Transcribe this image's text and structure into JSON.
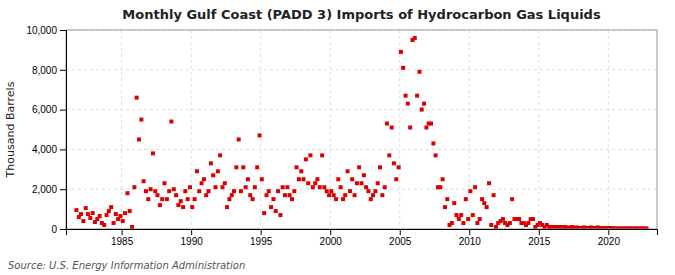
{
  "chart_data": {
    "type": "scatter",
    "title": "Monthly Gulf Coast (PADD 3) Imports of Hydrocarbon Gas Liquids",
    "ylabel": "Thousand Barrels",
    "annotations": [
      "Source: U.S. Energy Information Administration"
    ],
    "color": "#dd0000",
    "marker": "square",
    "grid": true,
    "xlim": [
      1981.0,
      2023.5
    ],
    "xticks": [
      1985,
      1990,
      1995,
      2000,
      2005,
      2010,
      2015,
      2020
    ],
    "ylim": [
      0,
      10000
    ],
    "yticks": [
      0,
      {
        "value": 2000,
        "label": "2,000"
      },
      {
        "value": 4000,
        "label": "4,000"
      },
      {
        "value": 6000,
        "label": "6,000"
      },
      {
        "value": 8000,
        "label": "8,000"
      },
      {
        "value": 10000,
        "label": "10,000"
      }
    ],
    "x": [
      1981.75,
      1981.92,
      1982.08,
      1982.25,
      1982.42,
      1982.58,
      1982.75,
      1982.92,
      1983.08,
      1983.25,
      1983.42,
      1983.58,
      1983.75,
      1983.92,
      1984.08,
      1984.25,
      1984.42,
      1984.58,
      1984.75,
      1984.92,
      1985.08,
      1985.25,
      1985.42,
      1985.58,
      1985.75,
      1985.92,
      1986.08,
      1986.25,
      1986.42,
      1986.58,
      1986.75,
      1986.92,
      1987.08,
      1987.25,
      1987.42,
      1987.58,
      1987.75,
      1987.92,
      1988.08,
      1988.25,
      1988.42,
      1988.58,
      1988.75,
      1988.92,
      1989.08,
      1989.25,
      1989.42,
      1989.58,
      1989.75,
      1989.92,
      1990.08,
      1990.25,
      1990.42,
      1990.58,
      1990.75,
      1990.92,
      1991.08,
      1991.25,
      1991.42,
      1991.58,
      1991.75,
      1991.92,
      1992.08,
      1992.25,
      1992.42,
      1992.58,
      1992.75,
      1992.92,
      1993.08,
      1993.25,
      1993.42,
      1993.58,
      1993.75,
      1993.92,
      1994.08,
      1994.25,
      1994.42,
      1994.58,
      1994.75,
      1994.92,
      1995.08,
      1995.25,
      1995.42,
      1995.58,
      1995.75,
      1995.92,
      1996.08,
      1996.25,
      1996.42,
      1996.58,
      1996.75,
      1996.92,
      1997.08,
      1997.25,
      1997.42,
      1997.58,
      1997.75,
      1997.92,
      1998.08,
      1998.25,
      1998.42,
      1998.58,
      1998.75,
      1998.92,
      1999.08,
      1999.25,
      1999.42,
      1999.58,
      1999.75,
      1999.92,
      2000.08,
      2000.25,
      2000.42,
      2000.58,
      2000.75,
      2000.92,
      2001.08,
      2001.25,
      2001.42,
      2001.58,
      2001.75,
      2001.92,
      2002.08,
      2002.25,
      2002.42,
      2002.58,
      2002.75,
      2002.92,
      2003.08,
      2003.25,
      2003.42,
      2003.58,
      2003.75,
      2003.92,
      2004.08,
      2004.25,
      2004.42,
      2004.58,
      2004.75,
      2004.92,
      2005.08,
      2005.25,
      2005.42,
      2005.58,
      2005.75,
      2005.92,
      2006.08,
      2006.25,
      2006.42,
      2006.58,
      2006.75,
      2006.92,
      2007.08,
      2007.25,
      2007.42,
      2007.58,
      2007.75,
      2007.92,
      2008.08,
      2008.25,
      2008.42,
      2008.58,
      2008.75,
      2008.92,
      2009.08,
      2009.25,
      2009.42,
      2009.58,
      2009.75,
      2009.92,
      2010.08,
      2010.25,
      2010.42,
      2010.58,
      2010.75,
      2010.92,
      2011.08,
      2011.25,
      2011.42,
      2011.58,
      2011.75,
      2011.92,
      2012.08,
      2012.25,
      2012.42,
      2012.58,
      2012.75,
      2012.92,
      2013.08,
      2013.25,
      2013.42,
      2013.58,
      2013.75,
      2013.92,
      2014.08,
      2014.25,
      2014.42,
      2014.58,
      2014.75,
      2014.92,
      2015.08,
      2015.25,
      2015.42,
      2015.58,
      2015.75,
      2015.92,
      2016.08,
      2016.25,
      2016.42,
      2016.58,
      2016.75,
      2016.92,
      2017.08,
      2017.25,
      2017.42,
      2017.58,
      2017.75,
      2017.92,
      2018.08,
      2018.25,
      2018.42,
      2018.58,
      2018.75,
      2018.92,
      2019.08,
      2019.25,
      2019.42,
      2019.58,
      2019.75,
      2019.92,
      2020.08,
      2020.25,
      2020.42,
      2020.58,
      2020.75,
      2020.92,
      2021.08,
      2021.25,
      2021.42,
      2021.58,
      2021.75,
      2021.92,
      2022.08,
      2022.25,
      2022.42,
      2022.58,
      2022.75
    ],
    "values": [
      950,
      600,
      750,
      400,
      1050,
      750,
      550,
      800,
      350,
      500,
      650,
      300,
      200,
      700,
      900,
      1100,
      300,
      750,
      500,
      650,
      400,
      800,
      1800,
      900,
      100,
      2100,
      6600,
      4500,
      5500,
      2400,
      1900,
      1500,
      2000,
      3800,
      1900,
      1700,
      1200,
      1500,
      2300,
      1500,
      1900,
      5400,
      2000,
      1700,
      1200,
      1400,
      1100,
      1900,
      1500,
      2100,
      1100,
      1500,
      2900,
      1900,
      2300,
      2500,
      1700,
      1900,
      3300,
      2700,
      2100,
      2900,
      3700,
      2100,
      2300,
      1100,
      1500,
      1700,
      1900,
      3100,
      4500,
      1900,
      3100,
      2100,
      2500,
      1700,
      1500,
      2100,
      3100,
      4700,
      2500,
      800,
      1700,
      1900,
      1100,
      1500,
      900,
      1900,
      700,
      2100,
      1700,
      2100,
      1700,
      1500,
      1900,
      3100,
      2500,
      2900,
      2500,
      3500,
      2300,
      3700,
      2100,
      2300,
      2500,
      2100,
      3700,
      2100,
      1900,
      1700,
      1900,
      1700,
      1500,
      2500,
      2100,
      1500,
      1700,
      2900,
      1900,
      2500,
      1700,
      2300,
      3100,
      2300,
      2700,
      2100,
      1900,
      1500,
      1700,
      1900,
      2300,
      3100,
      1700,
      2100,
      5300,
      3700,
      5100,
      3300,
      2500,
      3100,
      8900,
      8100,
      6700,
      6300,
      5100,
      9500,
      9600,
      6700,
      7900,
      6000,
      6300,
      5100,
      5300,
      5300,
      4300,
      3700,
      2100,
      2100,
      2500,
      1100,
      1500,
      200,
      300,
      1300,
      700,
      500,
      700,
      300,
      1500,
      500,
      1900,
      700,
      2100,
      300,
      500,
      1500,
      1300,
      1100,
      2300,
      200,
      1700,
      100,
      300,
      400,
      500,
      300,
      200,
      300,
      1500,
      500,
      500,
      500,
      300,
      300,
      200,
      300,
      500,
      500,
      100,
      200,
      300,
      200,
      100,
      200,
      100,
      100,
      100,
      100,
      100,
      100,
      100,
      100,
      50,
      80,
      100,
      50,
      80,
      50,
      50,
      80,
      50,
      50,
      80,
      50,
      50,
      80,
      50,
      50,
      50,
      50,
      50,
      50,
      30,
      30,
      30,
      30,
      30,
      30,
      30,
      30,
      30,
      30,
      30,
      30,
      30,
      30,
      30
    ]
  }
}
